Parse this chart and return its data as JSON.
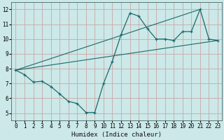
{
  "xlabel": "Humidex (Indice chaleur)",
  "bg_color": "#cce8e8",
  "grid_color": "#b8b8c8",
  "line_color": "#1a6b6b",
  "xlim": [
    -0.5,
    23.5
  ],
  "ylim": [
    4.5,
    12.5
  ],
  "xticks": [
    0,
    1,
    2,
    3,
    4,
    5,
    6,
    7,
    8,
    9,
    10,
    11,
    12,
    13,
    14,
    15,
    16,
    17,
    18,
    19,
    20,
    21,
    22,
    23
  ],
  "yticks": [
    5,
    6,
    7,
    8,
    9,
    10,
    11,
    12
  ],
  "line1_x": [
    0,
    1,
    2,
    3,
    4,
    5,
    6,
    7,
    8,
    9,
    10,
    11,
    12,
    13,
    14,
    15,
    16,
    17,
    18,
    19,
    20,
    21,
    22,
    23
  ],
  "line1_y": [
    7.9,
    7.6,
    7.1,
    7.15,
    6.8,
    6.3,
    5.8,
    5.65,
    5.05,
    5.05,
    7.0,
    8.5,
    10.3,
    11.75,
    11.55,
    10.7,
    10.0,
    10.0,
    9.9,
    10.5,
    10.5,
    12.0,
    10.0,
    9.9
  ],
  "line2_x": [
    0,
    21
  ],
  "line2_y": [
    7.9,
    12.0
  ],
  "line3_x": [
    0,
    23
  ],
  "line3_y": [
    7.9,
    9.9
  ]
}
